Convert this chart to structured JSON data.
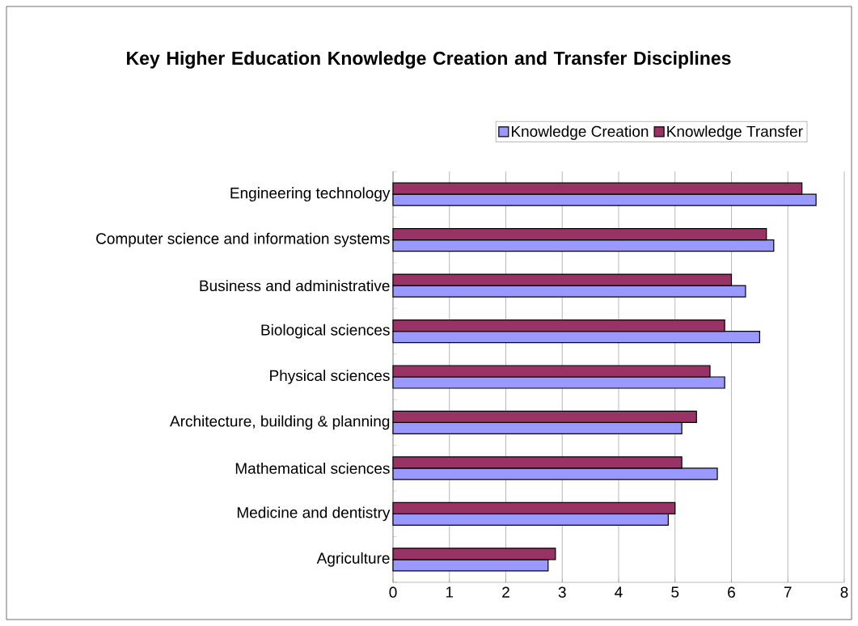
{
  "chart_data": {
    "type": "bar",
    "orientation": "horizontal",
    "title": "Key Higher Education Knowledge Creation and Transfer Disciplines",
    "categories": [
      "Engineering technology",
      "Computer science and information systems",
      "Business and administrative",
      "Biological sciences",
      "Physical sciences",
      "Architecture, building & planning",
      "Mathematical sciences",
      "Medicine and dentistry",
      "Agriculture"
    ],
    "series": [
      {
        "name": "Knowledge Creation",
        "color": "#9999ff",
        "values": [
          7.5,
          6.75,
          6.25,
          6.5,
          5.88,
          5.12,
          5.75,
          4.88,
          2.75
        ]
      },
      {
        "name": "Knowledge Transfer",
        "color": "#993366",
        "values": [
          7.25,
          6.62,
          6.0,
          5.88,
          5.62,
          5.38,
          5.12,
          5.0,
          2.88
        ]
      }
    ],
    "xlim": [
      0,
      8
    ],
    "xticks": [
      0,
      1,
      2,
      3,
      4,
      5,
      6,
      7,
      8
    ],
    "grid": "x",
    "legend": "top right"
  }
}
